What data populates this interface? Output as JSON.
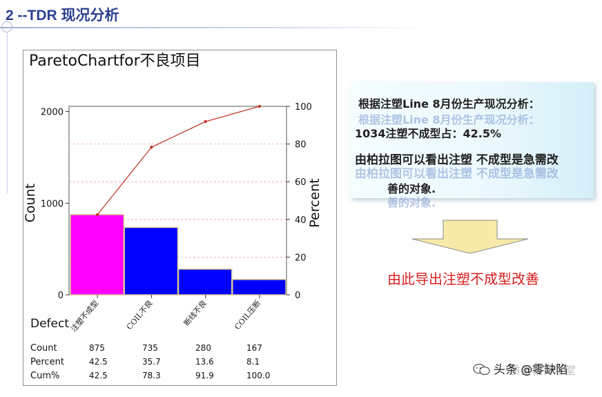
{
  "slide": {
    "title": "2 --TDR 现况分析"
  },
  "chart_data": {
    "type": "bar",
    "title": "ParetoChartfor不良项目",
    "categories": [
      "注塑不成型",
      "COIL不良",
      "断线不良",
      "COIL压断"
    ],
    "values": [
      875,
      735,
      280,
      167
    ],
    "percent": [
      42.5,
      35.7,
      13.6,
      8.1
    ],
    "cumulative_percent": [
      42.5,
      78.3,
      91.9,
      100.0
    ],
    "ylabel": "Count",
    "y2label": "Percent",
    "xlabel": "Defect",
    "ylim": [
      0,
      2057
    ],
    "y2lim": [
      0,
      100
    ],
    "y_ticks": [
      "0",
      "1000",
      "2000"
    ],
    "y2_ticks": [
      "0",
      "20",
      "40",
      "60",
      "80",
      "100"
    ],
    "grid": true,
    "colors": {
      "bar_first": "#ff00ff",
      "bar_rest": "#0000ff",
      "line": "#c0392b"
    },
    "table": {
      "row_labels": [
        "Count",
        "Percent",
        "Cum%"
      ],
      "count_values": [
        "875",
        "735",
        "280",
        "167"
      ],
      "percent_values": [
        "42.5",
        "35.7",
        "13.6",
        "8.1"
      ],
      "cum_values": [
        "42.5",
        "78.3",
        "91.9",
        "100.0"
      ]
    }
  },
  "info_box": {
    "line1": "根据注塑Line 8月份生产现况分析：",
    "line2": "1034注塑不成型占：42.5%",
    "line3": "由柏拉图可以看出注塑 不成型是急需改",
    "line4": "善的对象."
  },
  "conclusion": "由此导出注塑不成型改善",
  "watermark": {
    "text": "头条 @零缺陷",
    "ghost_text": "质量教育学堂"
  },
  "colors": {
    "title": "#2a3f8f",
    "conclusion": "#d81f1f",
    "arrow": "#f7eaa8"
  }
}
